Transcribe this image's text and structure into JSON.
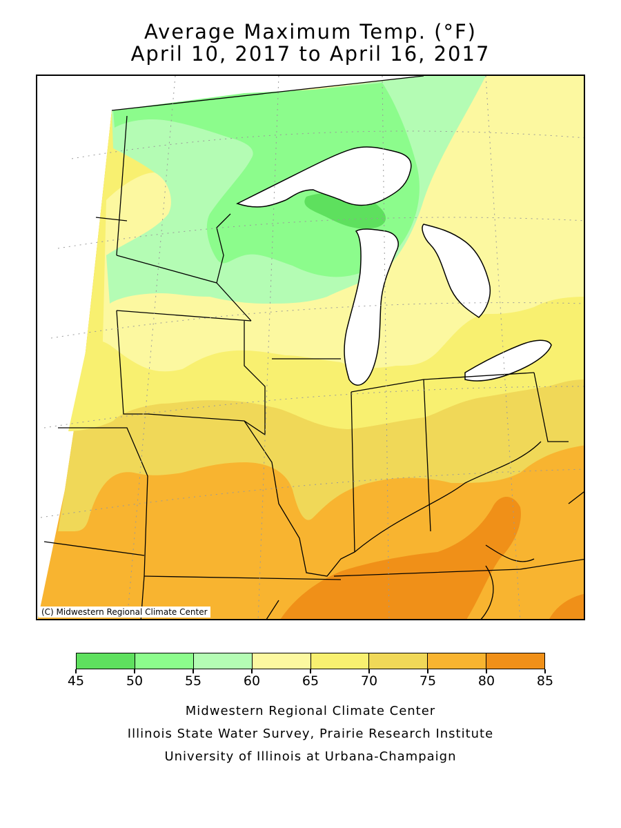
{
  "title": {
    "line1": "Average Maximum Temp. (°F)",
    "line2": "April 10, 2017 to April 16, 2017"
  },
  "map": {
    "copyright": "(C) Midwestern Regional Climate Center"
  },
  "legend": {
    "ticks": [
      "45",
      "50",
      "55",
      "60",
      "65",
      "70",
      "75",
      "80",
      "85"
    ],
    "colors": [
      "#5ee05e",
      "#8cfc8c",
      "#b4fcb4",
      "#fcf8a0",
      "#f8f070",
      "#f0d858",
      "#f8b430",
      "#f09018"
    ],
    "units": "°F"
  },
  "credits": {
    "line1": "Midwestern Regional Climate Center",
    "line2": "Illinois State Water Survey, Prairie Research Institute",
    "line3": "University of Illinois at Urbana-Champaign"
  }
}
